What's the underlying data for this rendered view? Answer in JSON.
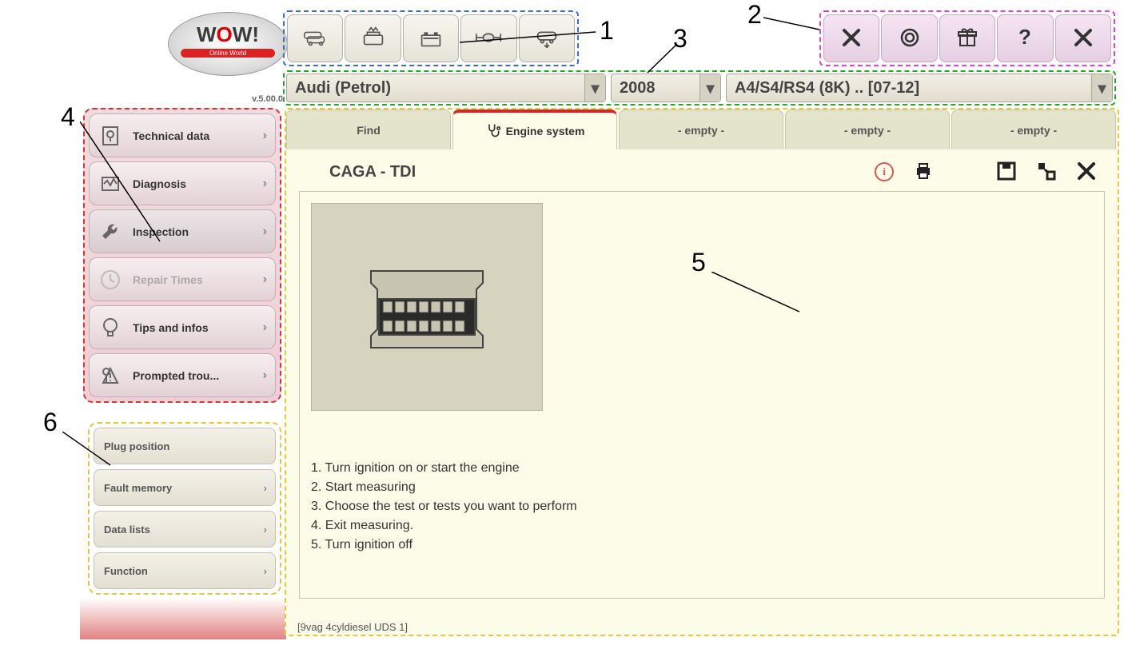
{
  "logo": {
    "main": "WOW!",
    "sub": "Online World",
    "version": "v.5.00.0"
  },
  "toolbar1": {
    "icons": [
      "cars-icon",
      "engine-icon",
      "battery-icon",
      "drivetrain-icon",
      "car-down-icon"
    ]
  },
  "toolbar2": {
    "icons": [
      "cancel-icon",
      "refresh-icon",
      "gift-icon",
      "help-icon",
      "close-icon"
    ]
  },
  "selection": {
    "make": "Audi (Petrol)",
    "year": "2008",
    "model": "A4/S4/RS4 (8K) .. [07-12]"
  },
  "sidebar_main": [
    {
      "icon": "doc",
      "label": "Technical data",
      "enabled": true,
      "selected": false
    },
    {
      "icon": "diag",
      "label": "Diagnosis",
      "enabled": true,
      "selected": false
    },
    {
      "icon": "wrench",
      "label": "Inspection",
      "enabled": true,
      "selected": true
    },
    {
      "icon": "clock",
      "label": "Repair Times",
      "enabled": false,
      "selected": false
    },
    {
      "icon": "bulb",
      "label": "Tips and infos",
      "enabled": true,
      "selected": false
    },
    {
      "icon": "warn",
      "label": "Prompted trou...",
      "enabled": true,
      "selected": false
    }
  ],
  "sidebar_sub": [
    {
      "label": "Plug position",
      "chev": false
    },
    {
      "label": "Fault memory",
      "chev": true
    },
    {
      "label": "Data lists",
      "chev": true
    },
    {
      "label": "Function",
      "chev": true
    }
  ],
  "tabs": [
    {
      "label": "Find",
      "active": false
    },
    {
      "label": "Engine system",
      "active": true,
      "icon": true
    },
    {
      "label": "- empty -",
      "active": false
    },
    {
      "label": "- empty -",
      "active": false
    },
    {
      "label": "- empty -",
      "active": false
    }
  ],
  "body": {
    "title": "CAGA - TDI",
    "actions": [
      "info",
      "print",
      "save",
      "expand",
      "close"
    ],
    "instructions": [
      "1. Turn ignition on or start the engine",
      "2. Start measuring",
      "3. Choose the test or tests you want to perform",
      "4. Exit measuring.",
      "5. Turn ignition off"
    ],
    "footer_code": "[9vag 4cyldiesel UDS 1]"
  },
  "annotations": {
    "1": "1",
    "2": "2",
    "3": "3",
    "4": "4",
    "5": "5",
    "6": "6"
  },
  "colors": {
    "blue_dash": "#3a6fc9",
    "magenta_dash": "#e040e0",
    "green_dash": "#2aa62a",
    "red_dash": "#d33",
    "yellow_dash": "#e6c63a",
    "content_bg": "#fcfce9",
    "sidebar1_bg": "#eecfd6"
  }
}
